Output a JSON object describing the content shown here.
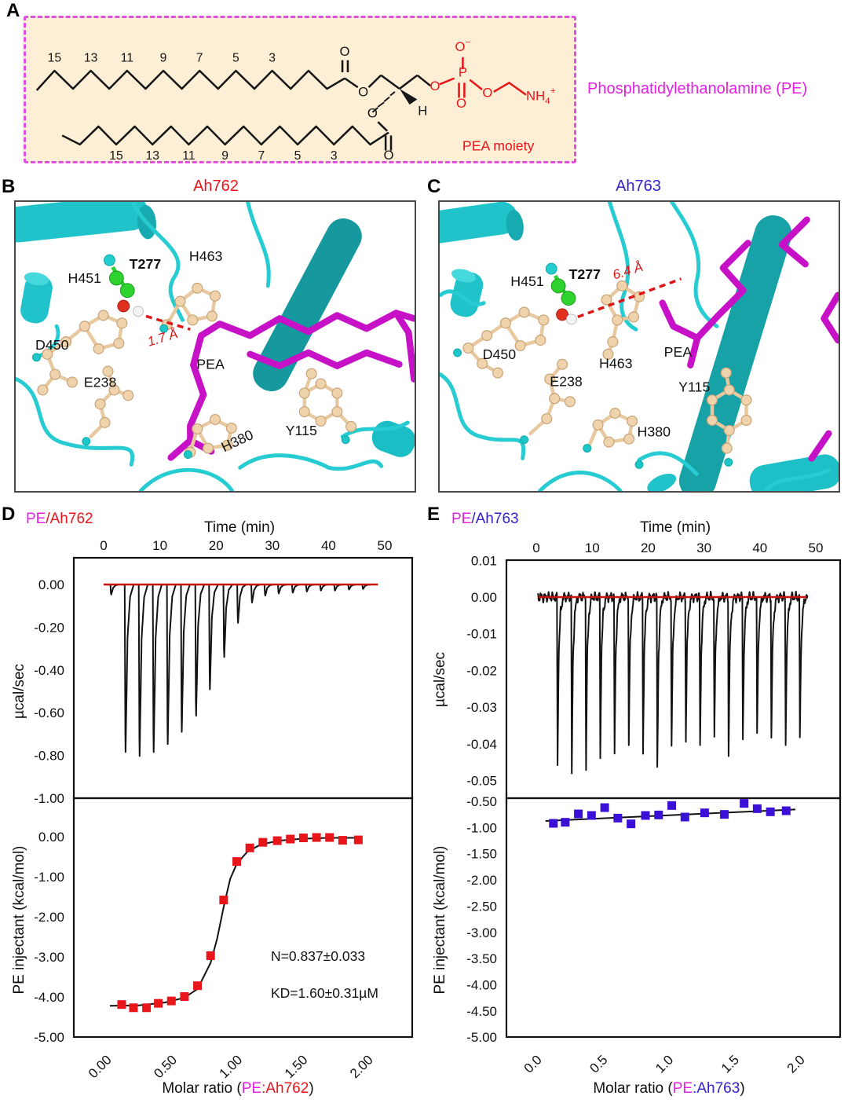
{
  "figure": {
    "panel_labels": {
      "A": "A",
      "B": "B",
      "C": "C",
      "D": "D",
      "E": "E"
    }
  },
  "panels": {
    "A": {
      "molecule_name": "Phosphatidylethanolamine (PE)",
      "moiety_label": "PEA moiety",
      "chain_numbers": [
        "15",
        "13",
        "11",
        "9",
        "7",
        "5",
        "3"
      ],
      "atoms": {
        "o": "O",
        "p": "P",
        "h": "H",
        "n": "NH",
        "sub4": "4",
        "plus": "+",
        "minus": "−"
      },
      "colors": {
        "box_bg": "#fcefd6",
        "box_border": "#e14fe1",
        "headgroup": "#e8151b",
        "name_text": "#e320e3"
      }
    },
    "B": {
      "title": "Ah762",
      "title_color": "#e8151b",
      "distance": "1.7 Å",
      "residues": {
        "h451": "H451",
        "t277": "T277",
        "h463": "H463",
        "d450": "D450",
        "e238": "E238",
        "pea": "PEA",
        "h380": "H380",
        "y115": "Y115"
      }
    },
    "C": {
      "title": "Ah763",
      "title_color": "#3322cc",
      "distance": "6.4 Å",
      "residues": {
        "h451": "H451",
        "t277": "T277",
        "h463": "H463",
        "d450": "D450",
        "e238": "E238",
        "pea": "PEA",
        "h380": "H380",
        "y115": "Y115"
      }
    },
    "D": {
      "title_pe": "PE",
      "title_suffix": "/Ah762"
    },
    "E": {
      "title_pe": "PE",
      "title_suffix": "/Ah763"
    }
  },
  "chart_data": [
    {
      "id": "ah762-thermogram",
      "panel": "D",
      "type": "line",
      "grid": false,
      "xlabel": "Time (min)",
      "ylabel": "µcal/sec",
      "x_ticks": [
        0,
        10,
        20,
        30,
        40,
        50
      ],
      "xlim": [
        -6,
        55
      ],
      "ylim": [
        0.12,
        -1.0
      ],
      "y_ticks": [
        {
          "label": "0.00",
          "v": 0
        },
        {
          "label": "-0.20",
          "v": -0.2
        },
        {
          "label": "-0.40",
          "v": -0.4
        },
        {
          "label": "-0.60",
          "v": -0.6
        },
        {
          "label": "-0.80",
          "v": -0.8
        },
        {
          "label": "-1.00",
          "v": -1.0
        }
      ],
      "baseline_value": 0.0,
      "baseline_color": "#c51414",
      "trace_color": "#131313",
      "noise_amplitude": 0.0004,
      "injections": {
        "times": [
          1.2,
          3.75,
          6.25,
          8.75,
          11.25,
          13.75,
          16.3,
          18.75,
          21.3,
          23.75,
          26.25,
          28.6,
          31.0,
          33.5,
          36.0,
          38.5,
          41.0,
          43.5,
          46.0
        ],
        "depths": [
          -0.05,
          -0.83,
          -0.85,
          -0.83,
          -0.79,
          -0.73,
          -0.65,
          -0.52,
          -0.36,
          -0.19,
          -0.09,
          -0.055,
          -0.045,
          -0.04,
          -0.035,
          -0.03,
          -0.03,
          -0.025,
          -0.022
        ]
      }
    },
    {
      "id": "ah762-isotherm",
      "panel": "D",
      "type": "scatter",
      "grid": false,
      "xlabel_parts": [
        {
          "t": "Molar ratio (",
          "c": "#111111"
        },
        {
          "t": "PE",
          "c": "#e320e3"
        },
        {
          "t": ":Ah762",
          "c": "#e8151b"
        },
        {
          "t": ")",
          "c": "#111111"
        }
      ],
      "ylabel": "PE injectant (kcal/mol)",
      "x_ticks": [
        {
          "label": "0.00",
          "v": 0
        },
        {
          "label": "0.50",
          "v": 0.5
        },
        {
          "label": "1.00",
          "v": 1.0
        },
        {
          "label": "1.50",
          "v": 1.5
        },
        {
          "label": "2.00",
          "v": 2.0
        }
      ],
      "y_ticks": [
        {
          "label": "0.00",
          "v": 0
        },
        {
          "label": "-1.00",
          "v": -1.0
        },
        {
          "label": "-2.00",
          "v": -2.0
        },
        {
          "label": "-3.00",
          "v": -3.0
        },
        {
          "label": "-4.00",
          "v": -4.0
        },
        {
          "label": "-5.00",
          "v": -5.0
        }
      ],
      "xlim": [
        -0.27,
        2.34
      ],
      "ylim": [
        0.96,
        -5.0
      ],
      "marker": "square",
      "marker_color": "#e8151b",
      "fit_color": "#131313",
      "points": [
        [
          0.12,
          -4.19
        ],
        [
          0.21,
          -4.27
        ],
        [
          0.31,
          -4.27
        ],
        [
          0.4,
          -4.16
        ],
        [
          0.5,
          -4.1
        ],
        [
          0.6,
          -3.99
        ],
        [
          0.7,
          -3.72
        ],
        [
          0.8,
          -2.97
        ],
        [
          0.9,
          -1.58
        ],
        [
          1.0,
          -0.62
        ],
        [
          1.1,
          -0.28
        ],
        [
          1.2,
          -0.14
        ],
        [
          1.31,
          -0.1
        ],
        [
          1.41,
          -0.06
        ],
        [
          1.51,
          -0.03
        ],
        [
          1.61,
          -0.02
        ],
        [
          1.71,
          -0.02
        ],
        [
          1.81,
          -0.09
        ],
        [
          1.93,
          -0.08
        ]
      ],
      "fit_curve": [
        [
          0.03,
          -4.22
        ],
        [
          0.25,
          -4.21
        ],
        [
          0.45,
          -4.14
        ],
        [
          0.6,
          -4.02
        ],
        [
          0.7,
          -3.8
        ],
        [
          0.8,
          -3.15
        ],
        [
          0.85,
          -2.55
        ],
        [
          0.9,
          -1.75
        ],
        [
          0.95,
          -1.05
        ],
        [
          1.0,
          -0.68
        ],
        [
          1.08,
          -0.38
        ],
        [
          1.18,
          -0.2
        ],
        [
          1.32,
          -0.1
        ],
        [
          1.5,
          -0.05
        ],
        [
          1.7,
          -0.03
        ],
        [
          1.96,
          -0.03
        ]
      ],
      "annotations": [
        {
          "text": "N=0.837±0.033"
        },
        {
          "text": "KD=1.60±0.31µM"
        }
      ]
    },
    {
      "id": "ah763-thermogram",
      "panel": "E",
      "type": "line",
      "grid": false,
      "xlabel": "Time (min)",
      "ylabel": "µcal/sec",
      "x_ticks": [
        0,
        10,
        20,
        30,
        40,
        50
      ],
      "xlim": [
        -5,
        55
      ],
      "ylim": [
        0.0103,
        -0.0548
      ],
      "y_ticks": [
        {
          "label": "0.01",
          "v": 0.01
        },
        {
          "label": "0.00",
          "v": 0
        },
        {
          "label": "-0.01",
          "v": -0.01
        },
        {
          "label": "-0.02",
          "v": -0.02
        },
        {
          "label": "-0.03",
          "v": -0.03
        },
        {
          "label": "-0.04",
          "v": -0.04
        },
        {
          "label": "-0.05",
          "v": -0.05
        }
      ],
      "baseline_value": 0.0,
      "baseline_color": "#c51414",
      "trace_color": "#131313",
      "noise_amplitude": 0.0016,
      "injections": {
        "times": [
          3.7,
          6.25,
          8.8,
          11.35,
          13.9,
          16.45,
          19.0,
          21.55,
          24.1,
          26.65,
          29.2,
          31.75,
          34.3,
          36.85,
          39.4,
          41.95,
          44.5,
          47.05
        ],
        "depths": [
          -0.045,
          -0.048,
          -0.046,
          -0.043,
          -0.043,
          -0.04,
          -0.042,
          -0.047,
          -0.041,
          -0.039,
          -0.041,
          -0.039,
          -0.043,
          -0.039,
          -0.038,
          -0.038,
          -0.04,
          -0.039
        ]
      }
    },
    {
      "id": "ah763-isotherm",
      "panel": "E",
      "type": "scatter",
      "grid": false,
      "xlabel_parts": [
        {
          "t": "Molar ratio (",
          "c": "#111111"
        },
        {
          "t": "PE",
          "c": "#e320e3"
        },
        {
          "t": ":Ah763",
          "c": "#3322cc"
        },
        {
          "t": ")",
          "c": "#111111"
        }
      ],
      "ylabel": "PE injectant (kcal/mol)",
      "x_ticks": [
        {
          "label": "0.0",
          "v": 0
        },
        {
          "label": "0.5",
          "v": 0.5
        },
        {
          "label": "1.0",
          "v": 1.0
        },
        {
          "label": "1.5",
          "v": 1.5
        },
        {
          "label": "2.0",
          "v": 2.0
        }
      ],
      "y_ticks": [
        {
          "label": "-0.50",
          "v": -0.5
        },
        {
          "label": "-1.00",
          "v": -1.0
        },
        {
          "label": "-1.50",
          "v": -1.5
        },
        {
          "label": "-2.00",
          "v": -2.0
        },
        {
          "label": "-2.50",
          "v": -2.5
        },
        {
          "label": "-3.00",
          "v": -3.0
        },
        {
          "label": "-3.50",
          "v": -3.5
        },
        {
          "label": "-4.00",
          "v": -4.0
        },
        {
          "label": "-4.50",
          "v": -4.5
        },
        {
          "label": "-5.00",
          "v": -5.0
        }
      ],
      "xlim": [
        -0.23,
        2.31
      ],
      "ylim": [
        -0.44,
        -5.0
      ],
      "marker": "square",
      "marker_color": "#3a10d6",
      "fit_color": "#131313",
      "points": [
        [
          0.13,
          -0.92
        ],
        [
          0.22,
          -0.9
        ],
        [
          0.32,
          -0.74
        ],
        [
          0.42,
          -0.77
        ],
        [
          0.52,
          -0.62
        ],
        [
          0.62,
          -0.82
        ],
        [
          0.72,
          -0.93
        ],
        [
          0.83,
          -0.77
        ],
        [
          0.93,
          -0.76
        ],
        [
          1.03,
          -0.58
        ],
        [
          1.13,
          -0.8
        ],
        [
          1.28,
          -0.72
        ],
        [
          1.43,
          -0.75
        ],
        [
          1.58,
          -0.54
        ],
        [
          1.68,
          -0.64
        ],
        [
          1.78,
          -0.7
        ],
        [
          1.9,
          -0.68
        ]
      ],
      "fit_line": [
        [
          0.07,
          -0.875
        ],
        [
          1.97,
          -0.655
        ]
      ],
      "annotations": []
    }
  ]
}
